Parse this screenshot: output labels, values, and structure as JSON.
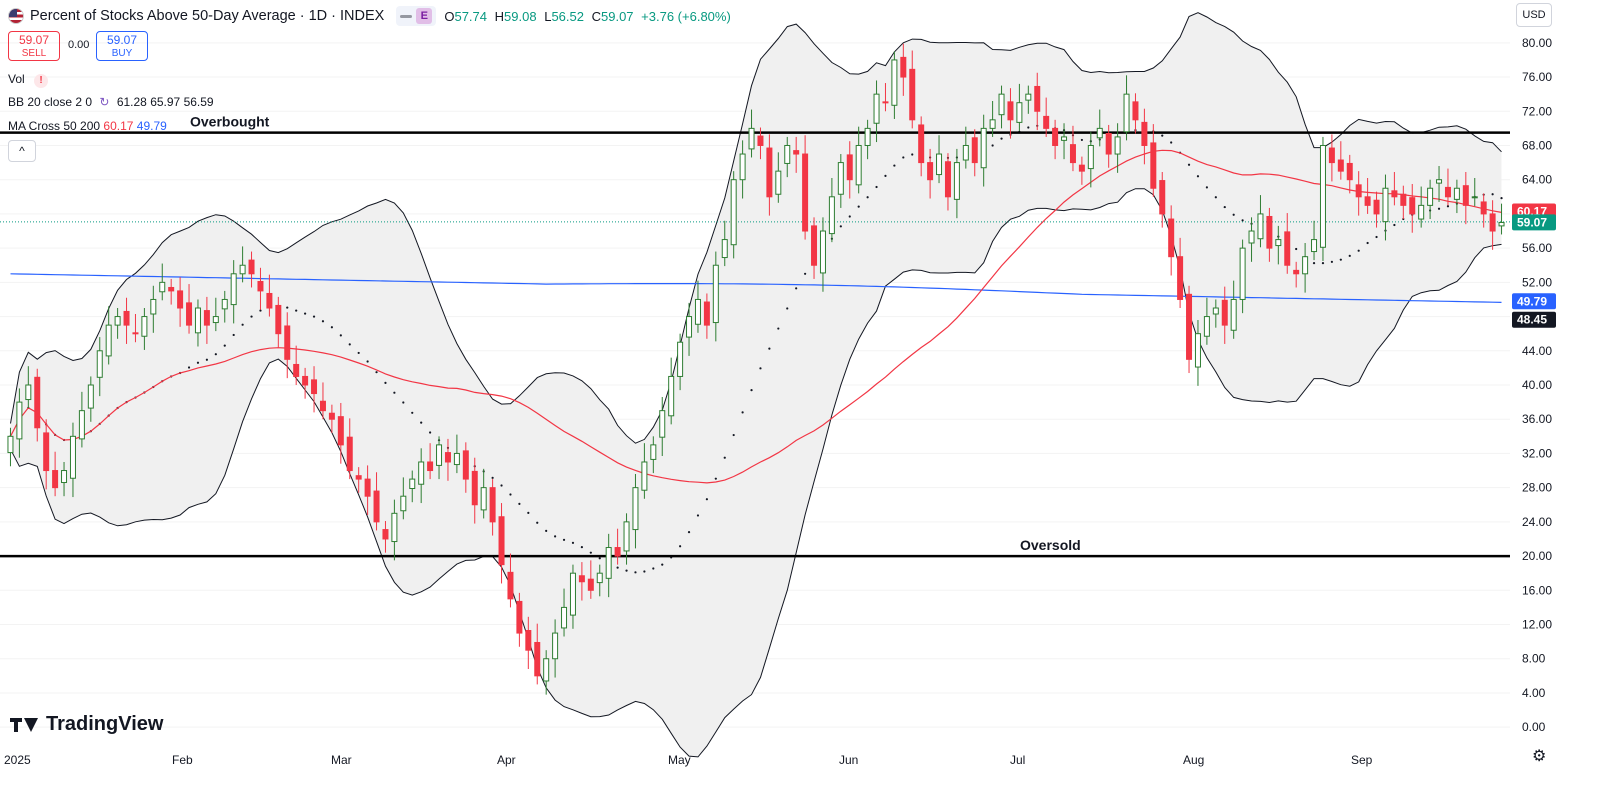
{
  "header": {
    "title": "Percent of Stocks Above 50-Day Average · 1D · INDEX",
    "e_badge": "E",
    "ohlc": {
      "o_label": "O",
      "o": "57.74",
      "h_label": "H",
      "h": "59.08",
      "l_label": "L",
      "l": "56.52",
      "c_label": "C",
      "c": "59.07",
      "change": "+3.76 (+6.80%)"
    }
  },
  "trade": {
    "sell_price": "59.07",
    "sell_label": "SELL",
    "spread": "0.00",
    "buy_price": "59.07",
    "buy_label": "BUY"
  },
  "indicators": {
    "vol_label": "Vol",
    "vol_warning": "!",
    "bb_label": "BB 20 close 2 0",
    "bb_values": [
      "61.28",
      "65.97",
      "56.59"
    ],
    "ma_label": "MA Cross 50 200",
    "ma_fast": "60.17",
    "ma_slow": "49.79",
    "collapse_glyph": "^"
  },
  "branding": {
    "logo_text": "TradingView"
  },
  "currency": "USD",
  "icons": {
    "settings": "gear-icon",
    "flag": "us-flag-icon",
    "refresh": "refresh-icon"
  },
  "colors": {
    "up": "#089981",
    "up_fill": "#2e7d32",
    "down": "#f23645",
    "ma50": "#f23645",
    "ma200": "#2962ff",
    "bb_fill": "#f0f0f0"
  },
  "chart_data": {
    "type": "candlestick",
    "y_axis": {
      "ticks": [
        "80.00",
        "76.00",
        "72.00",
        "68.00",
        "64.00",
        "60.00",
        "56.00",
        "52.00",
        "48.00",
        "44.00",
        "40.00",
        "36.00",
        "32.00",
        "28.00",
        "24.00",
        "20.00",
        "16.00",
        "12.00",
        "8.00",
        "4.00",
        "0.00"
      ],
      "ylim": [
        -1.5,
        81.5
      ]
    },
    "x_axis": {
      "labels": [
        "2025",
        "Feb",
        "Mar",
        "Apr",
        "May",
        "Jun",
        "Jul",
        "Aug",
        "Sep"
      ]
    },
    "price_tags": [
      {
        "value": "60.17",
        "y": 60.17,
        "color": "#f23645"
      },
      {
        "value": "59.07",
        "y": 59.07,
        "color": "#089981"
      },
      {
        "value": "49.79",
        "y": 49.79,
        "color": "#2962ff"
      },
      {
        "value": "48.45",
        "y": 48.45,
        "color": "#131722"
      }
    ],
    "levels": [
      {
        "label": "Overbought",
        "y": 69.5
      },
      {
        "label": "Oversold",
        "y": 20.0
      }
    ],
    "last_close": 59.07,
    "closes": [
      34,
      38,
      40,
      35,
      30,
      28,
      30,
      34,
      37,
      40,
      44,
      47,
      48,
      47,
      46,
      48,
      50,
      52,
      51,
      49,
      47,
      49,
      47,
      48,
      50,
      53,
      54,
      53,
      51,
      49,
      46,
      43,
      41,
      40,
      39,
      37,
      36,
      33,
      30,
      29,
      27,
      24,
      22,
      25,
      27,
      29,
      31,
      30,
      33,
      31,
      32,
      29,
      26,
      28,
      24,
      19,
      15,
      11,
      9,
      6,
      8,
      11,
      14,
      18,
      17,
      16,
      18,
      21,
      20,
      24,
      28,
      31,
      33,
      37,
      41,
      45,
      48,
      50,
      47,
      54,
      57,
      64,
      67,
      70,
      68,
      62,
      65,
      68,
      67,
      58,
      54,
      58,
      62,
      66,
      64,
      68,
      70,
      74,
      73,
      78,
      76,
      71,
      66,
      64,
      67,
      62,
      66,
      68,
      66,
      70,
      71,
      74,
      71,
      73,
      74,
      72,
      70,
      68,
      69,
      66,
      65,
      68,
      70,
      67,
      69,
      74,
      71,
      68,
      63,
      60,
      55,
      50,
      43,
      46,
      48,
      49,
      47,
      50,
      56,
      58,
      60,
      56,
      57,
      54,
      53,
      55,
      57,
      68,
      66,
      65,
      64,
      62,
      61,
      60,
      63,
      62,
      61,
      60,
      61,
      63,
      64,
      62,
      63,
      61,
      62,
      60,
      58,
      59
    ]
  }
}
